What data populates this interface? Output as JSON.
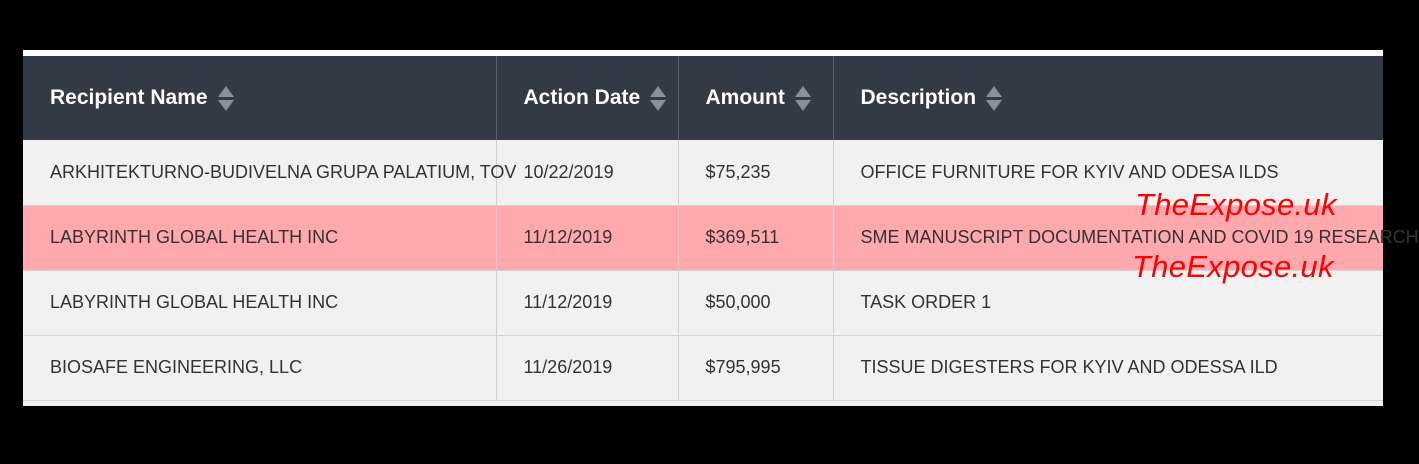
{
  "table": {
    "columns": [
      {
        "label": "Recipient Name"
      },
      {
        "label": "Action Date"
      },
      {
        "label": "Amount"
      },
      {
        "label": "Description"
      }
    ],
    "rows": [
      {
        "recipient": "ARKHITEKTURNO-BUDIVELNA GRUPA PALATIUM, TOV",
        "date": "10/22/2019",
        "amount": "$75,235",
        "description": "OFFICE FURNITURE FOR KYIV AND ODESA ILDS",
        "highlighted": false
      },
      {
        "recipient": "LABYRINTH GLOBAL HEALTH INC",
        "date": "11/12/2019",
        "amount": "$369,511",
        "description": "SME MANUSCRIPT DOCUMENTATION AND COVID 19 RESEARCH",
        "highlighted": true
      },
      {
        "recipient": "LABYRINTH GLOBAL HEALTH INC",
        "date": "11/12/2019",
        "amount": "$50,000",
        "description": "TASK ORDER 1",
        "highlighted": false
      },
      {
        "recipient": "BIOSAFE ENGINEERING, LLC",
        "date": "11/26/2019",
        "amount": "$795,995",
        "description": "TISSUE DIGESTERS FOR KYIV AND ODESSA ILD",
        "highlighted": false
      }
    ]
  },
  "watermarks": [
    "TheExpose.uk",
    "TheExpose.uk"
  ],
  "colors": {
    "header_bg": "#323a45",
    "row_bg": "#f1f1f1",
    "highlight_bg": "#ffa8ad",
    "watermark": "#ff0000"
  },
  "icons": {
    "sort": "sort-arrows-icon"
  }
}
